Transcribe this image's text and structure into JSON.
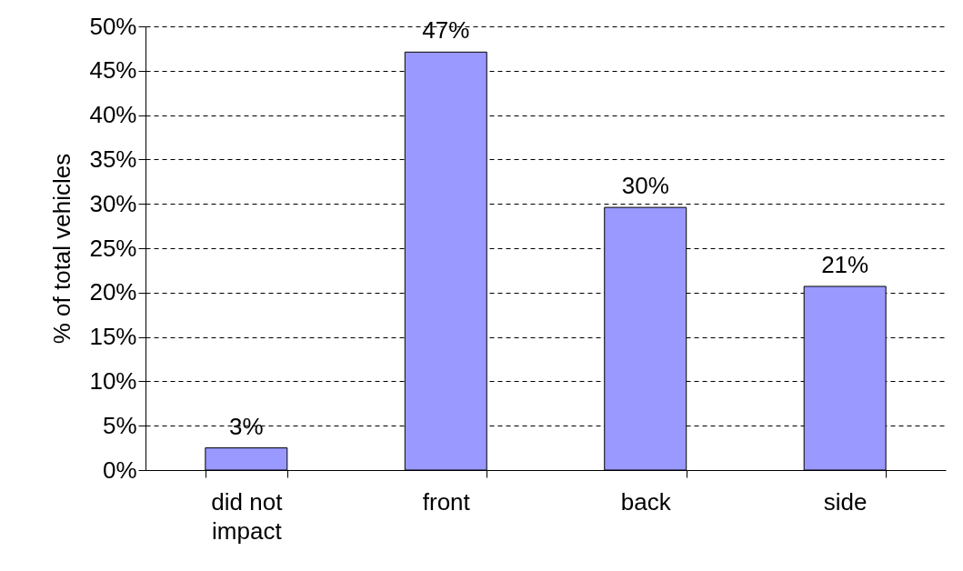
{
  "chart_data": {
    "type": "bar",
    "ylabel": "% of total vehicles",
    "categories": [
      "did not impact",
      "front",
      "back",
      "side"
    ],
    "values": [
      2.5,
      47.1,
      29.6,
      20.7
    ],
    "value_labels": [
      "3%",
      "47%",
      "30%",
      "21%"
    ],
    "color": "#9999ff",
    "ylim": [
      0,
      50
    ],
    "yticks": [
      {
        "value": 0,
        "label": "0%"
      },
      {
        "value": 5,
        "label": "5%"
      },
      {
        "value": 10,
        "label": "10%"
      },
      {
        "value": 15,
        "label": "15%"
      },
      {
        "value": 20,
        "label": "20%"
      },
      {
        "value": 25,
        "label": "25%"
      },
      {
        "value": 30,
        "label": "30%"
      },
      {
        "value": 35,
        "label": "35%"
      },
      {
        "value": 40,
        "label": "40%"
      },
      {
        "value": 45,
        "label": "45%"
      },
      {
        "value": 50,
        "label": "50%"
      }
    ],
    "grid": "y"
  }
}
